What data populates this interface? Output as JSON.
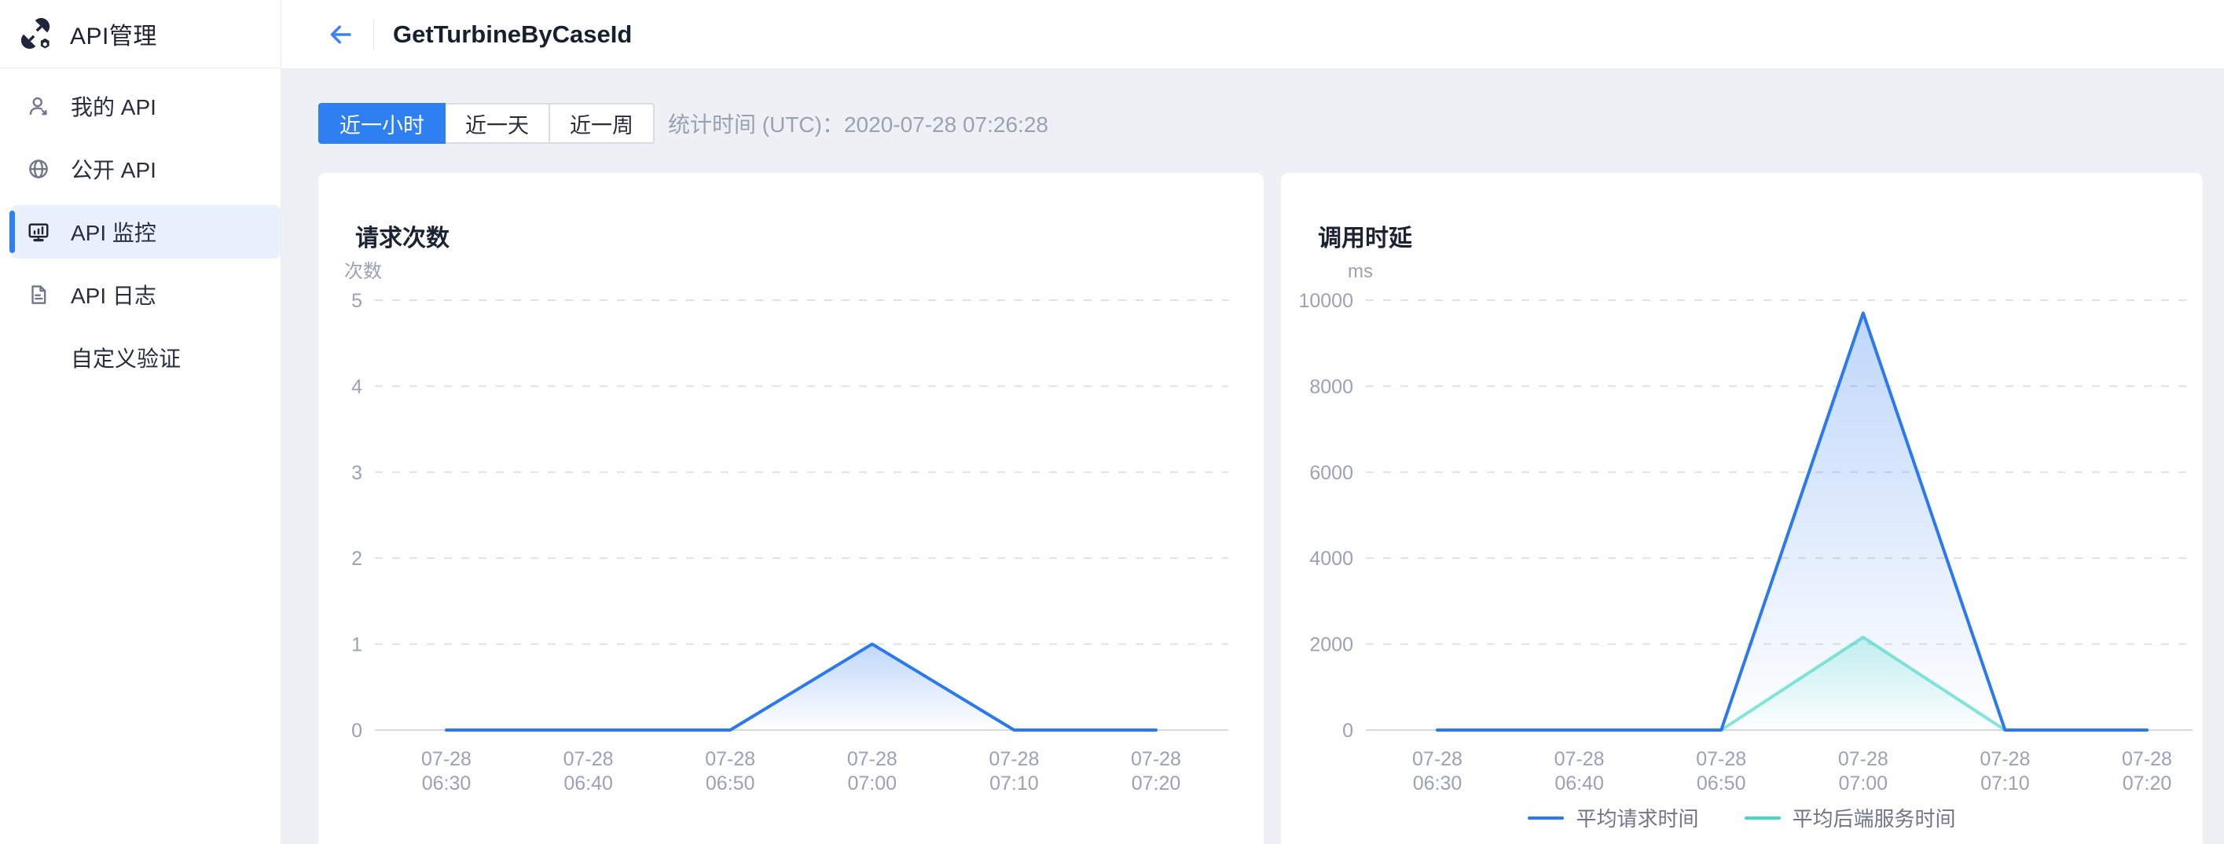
{
  "app": {
    "title": "API管理",
    "logo_icon": "api-gateway-icon"
  },
  "sidebar": {
    "items": [
      {
        "label": "我的 API",
        "icon": "user-icon",
        "active": false
      },
      {
        "label": "公开 API",
        "icon": "globe-icon",
        "active": false
      },
      {
        "label": "API 监控",
        "icon": "monitor-icon",
        "active": true
      },
      {
        "label": "API 日志",
        "icon": "document-icon",
        "active": false
      },
      {
        "label": "自定义验证",
        "icon": "none",
        "active": false
      }
    ]
  },
  "header": {
    "back_icon": "arrow-left-icon",
    "title": "GetTurbineByCaseId"
  },
  "toolbar": {
    "ranges": [
      {
        "label": "近一小时",
        "active": true
      },
      {
        "label": "近一天",
        "active": false
      },
      {
        "label": "近一周",
        "active": false
      }
    ],
    "stats_text": "统计时间 (UTC)：2020-07-28 07:26:28"
  },
  "colors": {
    "accent_blue": "#2e7ff2",
    "chart_blue": "#2b79f0",
    "chart_teal": "#45d7c6",
    "sidebar_active_bg": "#e8f1fd",
    "page_bg": "#eef0f5",
    "muted_text": "#9aa1b0",
    "grid_line": "#dde1e8"
  },
  "chart_data": [
    {
      "type": "line",
      "title": "请求次数",
      "unit": "次数",
      "categories": [
        [
          "07-28",
          "06:30"
        ],
        [
          "07-28",
          "06:40"
        ],
        [
          "07-28",
          "06:50"
        ],
        [
          "07-28",
          "07:00"
        ],
        [
          "07-28",
          "07:10"
        ],
        [
          "07-28",
          "07:20"
        ]
      ],
      "ylim": [
        0,
        5
      ],
      "y_tick_step": 1,
      "grid": "dashed",
      "legend": false,
      "series": [
        {
          "name": "请求次数",
          "color": "#2b79f0",
          "fill_opacity": 0.3,
          "line_opacity": 1,
          "values": [
            0,
            0,
            0,
            1,
            0,
            0
          ]
        }
      ]
    },
    {
      "type": "line",
      "title": "调用时延",
      "unit": "ms",
      "categories": [
        [
          "07-28",
          "06:30"
        ],
        [
          "07-28",
          "06:40"
        ],
        [
          "07-28",
          "06:50"
        ],
        [
          "07-28",
          "07:00"
        ],
        [
          "07-28",
          "07:10"
        ],
        [
          "07-28",
          "07:20"
        ]
      ],
      "ylim": [
        0,
        10000
      ],
      "y_tick_step": 2000,
      "grid": "dashed",
      "legend": true,
      "legend_position": "bottom",
      "series": [
        {
          "name": "平均请求时间",
          "color": "#2b79f0",
          "fill_opacity": 0.3,
          "line_opacity": 1,
          "values": [
            0,
            0,
            0,
            9700,
            0,
            0
          ]
        },
        {
          "name": "平均后端服务时间",
          "color": "#45d7c6",
          "fill_opacity": 0.28,
          "line_opacity": 0.65,
          "values": [
            0,
            0,
            0,
            2160,
            0,
            0
          ]
        }
      ]
    }
  ]
}
